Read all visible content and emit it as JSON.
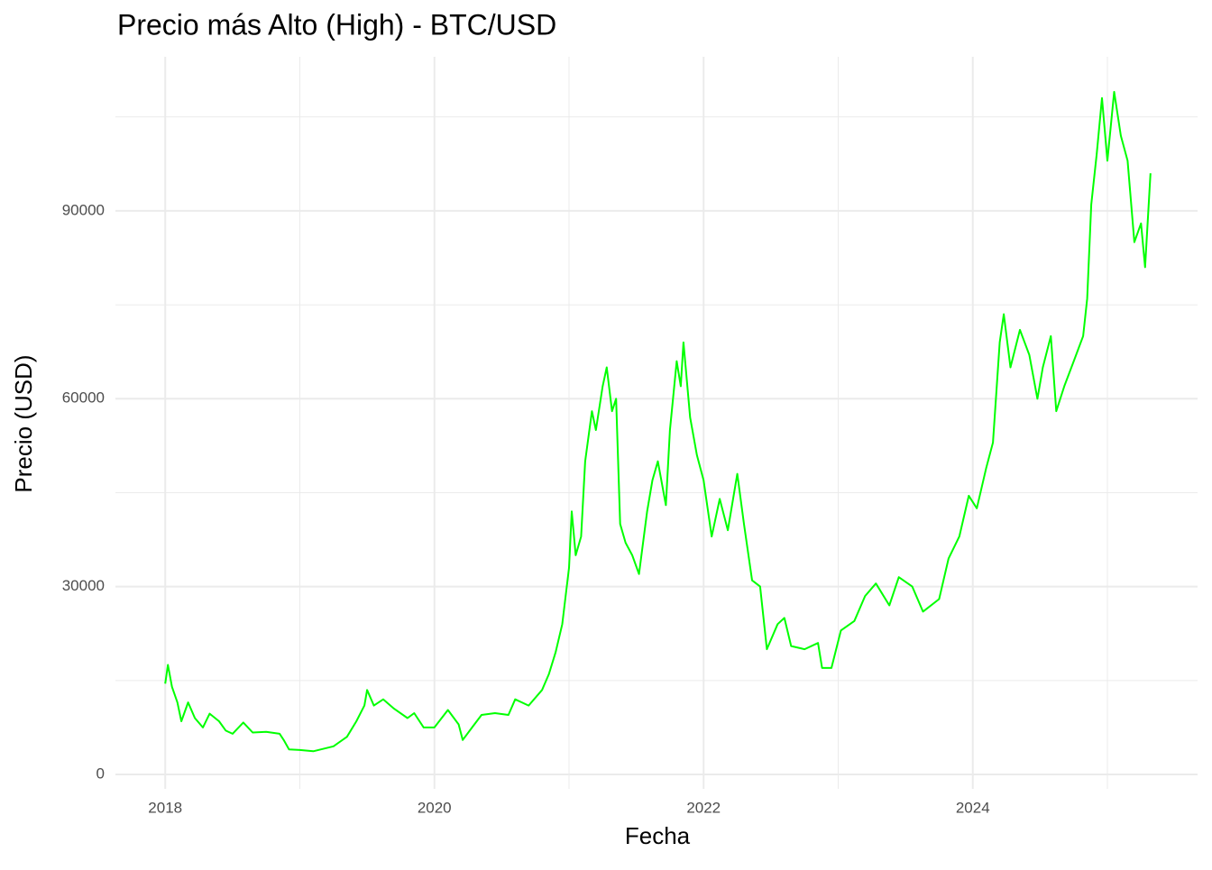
{
  "chart_data": {
    "type": "line",
    "title": "Precio más Alto (High) - BTC/USD",
    "x_label": "Fecha",
    "y_label": "Precio (USD)",
    "x": [
      2018.0,
      2018.02,
      2018.05,
      2018.09,
      2018.12,
      2018.17,
      2018.22,
      2018.28,
      2018.33,
      2018.4,
      2018.45,
      2018.5,
      2018.58,
      2018.65,
      2018.75,
      2018.85,
      2018.88,
      2018.92,
      2019.0,
      2019.1,
      2019.25,
      2019.35,
      2019.42,
      2019.48,
      2019.5,
      2019.55,
      2019.62,
      2019.7,
      2019.8,
      2019.85,
      2019.92,
      2020.0,
      2020.1,
      2020.18,
      2020.21,
      2020.28,
      2020.35,
      2020.45,
      2020.55,
      2020.6,
      2020.7,
      2020.8,
      2020.85,
      2020.9,
      2020.95,
      2021.0,
      2021.02,
      2021.05,
      2021.09,
      2021.12,
      2021.17,
      2021.2,
      2021.25,
      2021.28,
      2021.32,
      2021.35,
      2021.38,
      2021.42,
      2021.47,
      2021.52,
      2021.58,
      2021.62,
      2021.66,
      2021.72,
      2021.75,
      2021.8,
      2021.83,
      2021.85,
      2021.9,
      2021.95,
      2022.0,
      2022.06,
      2022.12,
      2022.18,
      2022.25,
      2022.3,
      2022.36,
      2022.42,
      2022.47,
      2022.55,
      2022.6,
      2022.65,
      2022.75,
      2022.85,
      2022.88,
      2022.95,
      2023.02,
      2023.12,
      2023.2,
      2023.28,
      2023.38,
      2023.45,
      2023.55,
      2023.63,
      2023.75,
      2023.82,
      2023.9,
      2023.97,
      2024.03,
      2024.1,
      2024.15,
      2024.2,
      2024.23,
      2024.28,
      2024.35,
      2024.42,
      2024.48,
      2024.52,
      2024.58,
      2024.62,
      2024.68,
      2024.75,
      2024.82,
      2024.85,
      2024.88,
      2024.92,
      2024.96,
      2025.0,
      2025.05,
      2025.1,
      2025.15,
      2025.2,
      2025.25,
      2025.28,
      2025.32
    ],
    "series": [
      {
        "name": "High",
        "color": "#00ff00",
        "values": [
          14500,
          17500,
          14000,
          11500,
          8500,
          11500,
          9000,
          7500,
          9700,
          8500,
          7000,
          6500,
          8300,
          6700,
          6800,
          6500,
          5500,
          4000,
          3900,
          3700,
          4500,
          6000,
          8500,
          11000,
          13500,
          11000,
          12000,
          10500,
          9000,
          9800,
          7500,
          7500,
          10300,
          8000,
          5500,
          7500,
          9500,
          9800,
          9500,
          12000,
          11000,
          13500,
          16000,
          19500,
          24000,
          33000,
          42000,
          35000,
          38000,
          50000,
          58000,
          55000,
          62000,
          65000,
          58000,
          60000,
          40000,
          37000,
          35000,
          32000,
          42000,
          47000,
          50000,
          43000,
          55000,
          66000,
          62000,
          69000,
          57000,
          51000,
          47000,
          38000,
          44000,
          39000,
          48000,
          40000,
          31000,
          30000,
          20000,
          24000,
          25000,
          20500,
          20000,
          21000,
          17000,
          17000,
          23000,
          24500,
          28500,
          30500,
          27000,
          31500,
          30000,
          26000,
          28000,
          34500,
          38000,
          44500,
          42500,
          49000,
          53000,
          69000,
          73500,
          65000,
          71000,
          67000,
          60000,
          65000,
          70000,
          58000,
          62000,
          66000,
          70000,
          76000,
          91000,
          99000,
          108000,
          98000,
          109000,
          102000,
          98000,
          85000,
          88000,
          81000,
          96000
        ]
      }
    ],
    "xlim": [
      2017.63,
      2025.67
    ],
    "xticks": [
      2018,
      2020,
      2022,
      2024
    ],
    "x_minor_ticks": [
      2019,
      2021,
      2023,
      2025
    ],
    "ylim": [
      -2300,
      114600
    ],
    "yticks": [
      0,
      30000,
      60000,
      90000
    ],
    "y_minor_ticks": [
      15000,
      45000,
      75000,
      105000
    ],
    "grid": true
  }
}
